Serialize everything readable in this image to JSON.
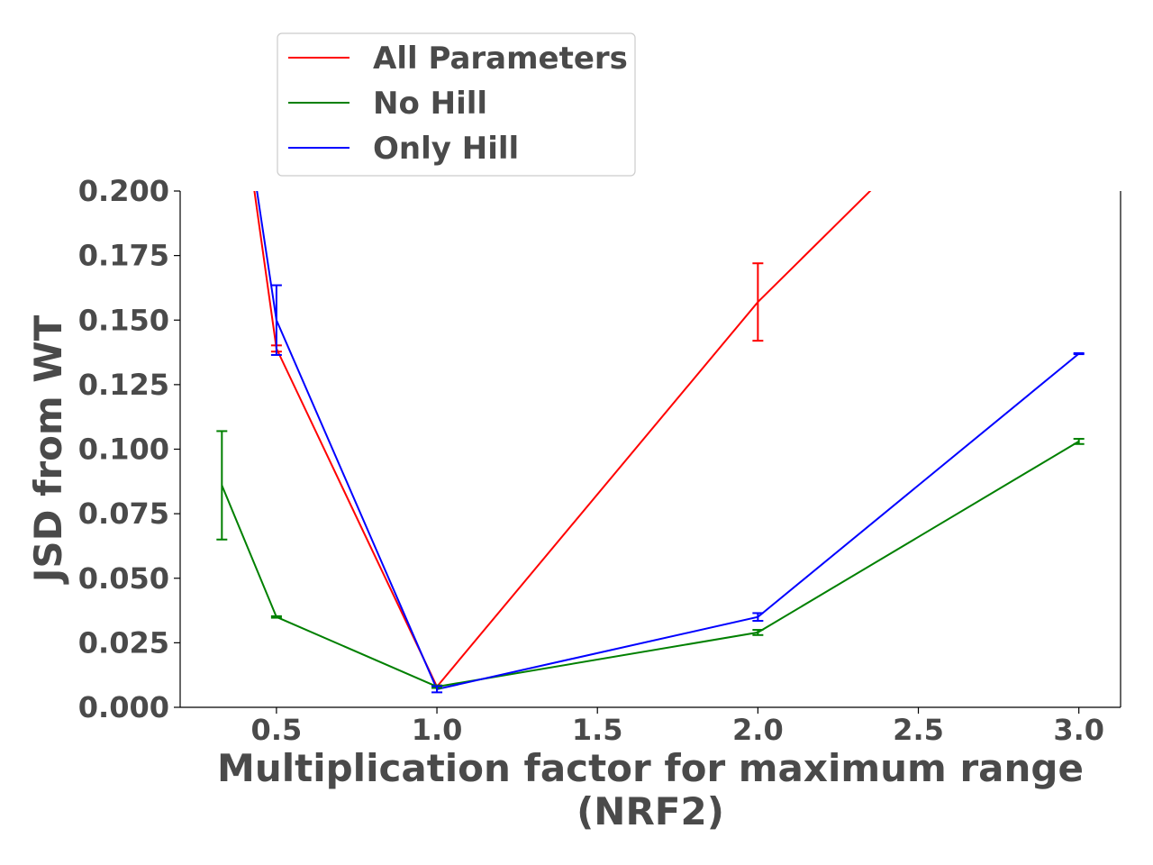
{
  "chart_data": {
    "type": "line",
    "title": "",
    "xlabel_lines": [
      "Multiplication factor for maximum range",
      "(NRF2)"
    ],
    "ylabel": "JSD from WT",
    "xlim": [
      0.2,
      3.13
    ],
    "ylim": [
      0.0,
      0.2
    ],
    "xticks": [
      0.5,
      1.0,
      1.5,
      2.0,
      2.5,
      3.0
    ],
    "xtick_labels": [
      "0.5",
      "1.0",
      "1.5",
      "2.0",
      "2.5",
      "3.0"
    ],
    "yticks": [
      0.0,
      0.025,
      0.05,
      0.075,
      0.1,
      0.125,
      0.15,
      0.175,
      0.2
    ],
    "ytick_labels": [
      "0.000",
      "0.025",
      "0.050",
      "0.075",
      "0.100",
      "0.125",
      "0.150",
      "0.175",
      "0.200"
    ],
    "legend_position": "top, above plot, left-center",
    "grid": false,
    "series": [
      {
        "name": "All Parameters",
        "color": "#ff0000",
        "x": [
          0.33,
          0.5,
          1.0,
          2.0,
          3.0
        ],
        "y": [
          0.29,
          0.139,
          0.008,
          0.157,
          0.28
        ],
        "err": [
          0.0,
          0.0012,
          0.0,
          0.015,
          0.0
        ]
      },
      {
        "name": "No Hill",
        "color": "#008000",
        "x": [
          0.33,
          0.5,
          1.0,
          2.0,
          3.0
        ],
        "y": [
          0.086,
          0.035,
          0.008,
          0.029,
          0.103
        ],
        "err": [
          0.021,
          0.0003,
          0.0005,
          0.001,
          0.001
        ]
      },
      {
        "name": "Only Hill",
        "color": "#0000ff",
        "x": [
          0.33,
          0.5,
          1.0,
          2.0,
          3.0
        ],
        "y": [
          0.29,
          0.15,
          0.007,
          0.035,
          0.137
        ],
        "err": [
          0.0,
          0.0135,
          0.0012,
          0.0015,
          0.0002
        ]
      }
    ]
  }
}
